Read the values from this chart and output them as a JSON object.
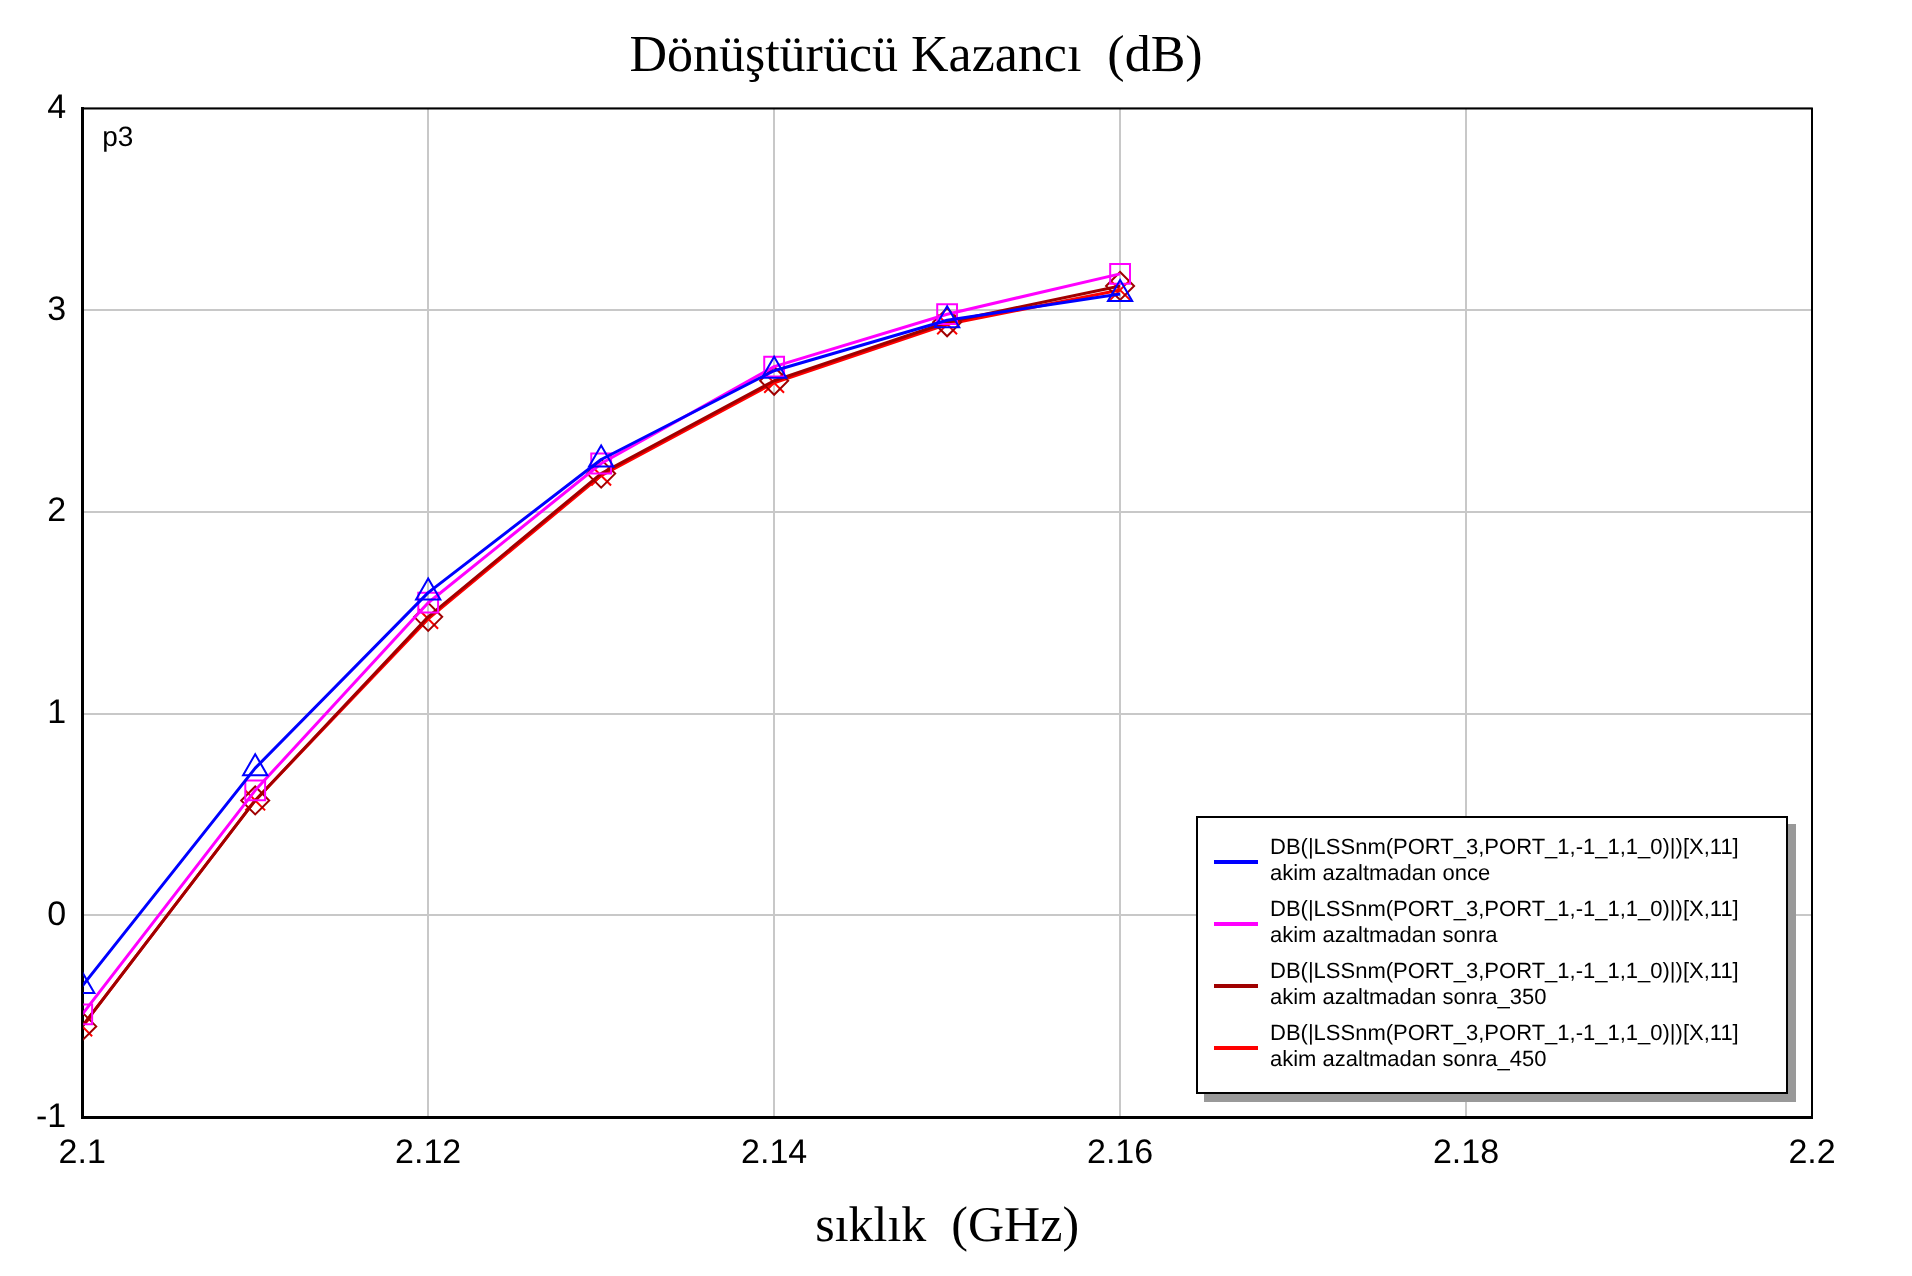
{
  "chart_data": {
    "type": "line",
    "title": "Dönüştürücü Kazancı  (dB)",
    "xlabel": "sıklık  (GHz)",
    "x": [
      2.1,
      2.11,
      2.12,
      2.13,
      2.14,
      2.15,
      2.16
    ],
    "series": [
      {
        "name": "DB(|LSSnm(PORT_3,PORT_1,-1_1,1_0)|)[X,11] akim azaltmadan once",
        "color": "#0000ff",
        "marker": "triangle",
        "values": [
          -0.35,
          0.73,
          1.6,
          2.26,
          2.7,
          2.95,
          3.08
        ]
      },
      {
        "name": "DB(|LSSnm(PORT_3,PORT_1,-1_1,1_0)|)[X,11] akim azaltmadan sonra",
        "color": "#ff00ff",
        "marker": "square",
        "values": [
          -0.49,
          0.62,
          1.55,
          2.24,
          2.72,
          2.98,
          3.18
        ]
      },
      {
        "name": "DB(|LSSnm(PORT_3,PORT_1,-1_1,1_0)|)[X,11] akim azaltmadan sonra_350",
        "color": "#a00000",
        "marker": "diamond",
        "values": [
          -0.55,
          0.57,
          1.48,
          2.19,
          2.65,
          2.94,
          3.12
        ]
      },
      {
        "name": "DB(|LSSnm(PORT_3,PORT_1,-1_1,1_0)|)[X,11] akim azaltmadan sonra_450",
        "color": "#ff0000",
        "marker": "cross",
        "values": [
          -0.55,
          0.57,
          1.47,
          2.18,
          2.64,
          2.93,
          3.1
        ]
      }
    ],
    "annotations": [
      "p3"
    ],
    "xlim": [
      2.1,
      2.2
    ],
    "xticks": [
      2.1,
      2.12,
      2.14,
      2.16,
      2.18,
      2.2
    ],
    "ylim": [
      -1,
      4
    ],
    "yticks": [
      -1,
      0,
      1,
      2,
      3,
      4
    ],
    "grid": true,
    "legend": "bottom right",
    "line_style": "solid"
  }
}
